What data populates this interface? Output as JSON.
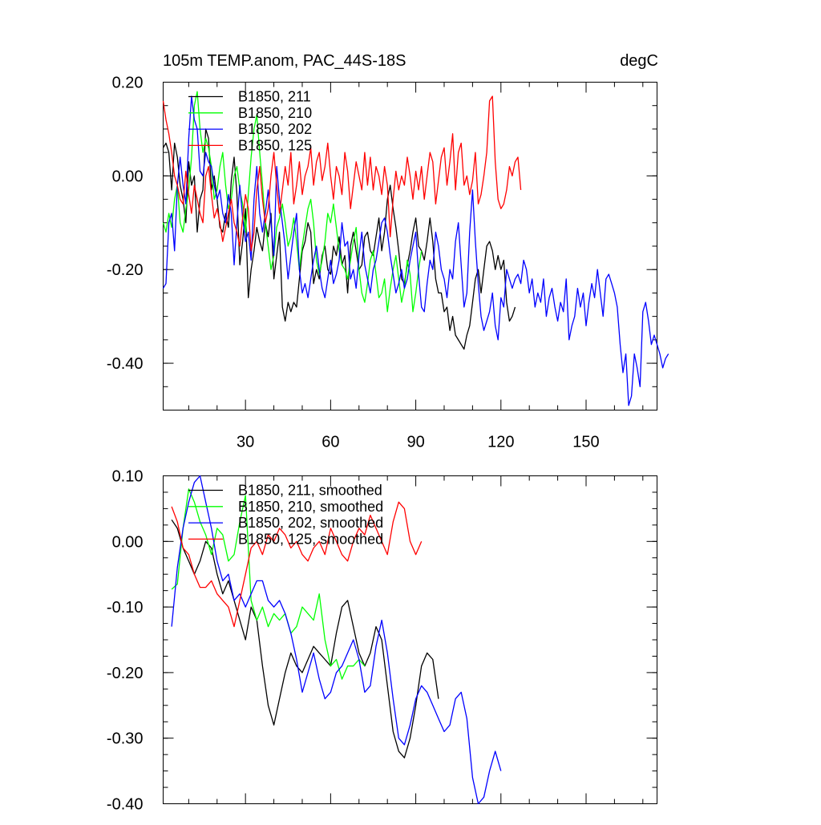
{
  "chart_data": [
    {
      "type": "line",
      "title": "105m TEMP.anom, PAC_44S-18S",
      "units": "degC",
      "xlabel": "",
      "ylabel": "",
      "xlim": [
        1,
        175
      ],
      "ylim": [
        -0.5,
        0.2
      ],
      "xticks": [
        30,
        60,
        90,
        120,
        150
      ],
      "xtick_labels": [
        "30",
        "60",
        "90",
        "120",
        "150"
      ],
      "yticks": [
        0.2,
        0.0,
        -0.2,
        -0.4
      ],
      "ytick_labels": [
        "0.20",
        "0.00",
        "-0.20",
        "-0.40"
      ],
      "legend_position": "top-left",
      "series": [
        {
          "name": "B1850, 211",
          "color": "#000000",
          "x_start": 1,
          "x_step": 1,
          "values": [
            0.06,
            0.07,
            0.05,
            -0.03,
            0.07,
            0.04,
            -0.02,
            -0.05,
            -0.1,
            0.03,
            -0.02,
            0.0,
            -0.12,
            -0.05,
            -0.03,
            0.1,
            0.08,
            -0.03,
            0.0,
            -0.05,
            -0.11,
            -0.12,
            -0.08,
            -0.11,
            -0.01,
            0.04,
            -0.04,
            -0.19,
            -0.14,
            -0.07,
            -0.26,
            -0.2,
            -0.16,
            -0.11,
            -0.14,
            -0.16,
            -0.1,
            -0.13,
            -0.08,
            -0.22,
            -0.17,
            -0.12,
            -0.28,
            -0.31,
            -0.27,
            -0.29,
            -0.27,
            -0.28,
            -0.22,
            -0.16,
            -0.14,
            -0.1,
            -0.12,
            -0.23,
            -0.2,
            -0.22,
            -0.17,
            -0.15,
            -0.2,
            -0.21,
            -0.15,
            -0.17,
            -0.13,
            -0.19,
            -0.17,
            -0.25,
            -0.15,
            -0.12,
            -0.16,
            -0.2,
            -0.19,
            -0.13,
            -0.12,
            -0.16,
            -0.17,
            -0.13,
            -0.09,
            -0.16,
            -0.12,
            -0.05,
            -0.02,
            -0.07,
            -0.11,
            -0.16,
            -0.22,
            -0.23,
            -0.19,
            -0.16,
            -0.12,
            -0.09,
            -0.15,
            -0.16,
            -0.18,
            -0.14,
            -0.09,
            -0.14,
            -0.22,
            -0.25,
            -0.25,
            -0.29,
            -0.28,
            -0.33,
            -0.3,
            -0.34,
            -0.35,
            -0.36,
            -0.37,
            -0.34,
            -0.32,
            -0.27,
            -0.22,
            -0.2,
            -0.25,
            -0.2,
            -0.15,
            -0.14,
            -0.16,
            -0.2,
            -0.17,
            -0.2,
            -0.18,
            -0.27,
            -0.31,
            -0.3,
            -0.28
          ]
        },
        {
          "name": "B1850, 210",
          "color": "#00ff00",
          "x_start": 1,
          "x_step": 1,
          "values": [
            -0.1,
            -0.12,
            -0.08,
            -0.11,
            -0.05,
            -0.02,
            -0.1,
            -0.12,
            -0.07,
            -0.03,
            0.04,
            0.15,
            0.18,
            0.1,
            0.05,
            0.08,
            0.06,
            0.02,
            -0.05,
            -0.03,
            0.02,
            0.05,
            -0.02,
            -0.07,
            -0.05,
            0.0,
            0.02,
            -0.03,
            -0.06,
            -0.12,
            -0.04,
            0.04,
            0.1,
            0.13,
            0.05,
            -0.02,
            -0.1,
            -0.15,
            -0.2,
            -0.17,
            -0.11,
            -0.09,
            -0.06,
            -0.1,
            -0.15,
            -0.13,
            -0.09,
            -0.14,
            -0.2,
            -0.15,
            -0.11,
            -0.07,
            -0.05,
            -0.1,
            -0.18,
            -0.21,
            -0.18,
            -0.14,
            -0.08,
            -0.1,
            -0.06,
            -0.11,
            -0.16,
            -0.19,
            -0.2,
            -0.22,
            -0.18,
            -0.14,
            -0.11,
            -0.2,
            -0.25,
            -0.27,
            -0.23,
            -0.18,
            -0.16,
            -0.21,
            -0.26,
            -0.25,
            -0.22,
            -0.29,
            -0.24,
            -0.2,
            -0.17,
            -0.22,
            -0.27,
            -0.24,
            -0.18,
            -0.21,
            -0.29,
            -0.25,
            -0.2,
            -0.16
          ]
        },
        {
          "name": "B1850, 202",
          "color": "#0000ff",
          "x_start": 1,
          "x_step": 1,
          "values": [
            -0.24,
            -0.23,
            -0.1,
            -0.08,
            -0.16,
            -0.02,
            0.04,
            -0.02,
            -0.06,
            0.08,
            0.17,
            0.12,
            0.1,
            0.01,
            0.0,
            0.05,
            0.03,
            0.02,
            -0.02,
            -0.05,
            -0.03,
            -0.08,
            -0.1,
            -0.04,
            -0.08,
            -0.19,
            -0.1,
            -0.02,
            -0.09,
            -0.14,
            -0.12,
            -0.18,
            -0.05,
            0.02,
            -0.08,
            -0.12,
            -0.08,
            -0.03,
            -0.1,
            -0.17,
            0.02,
            -0.05,
            -0.1,
            -0.15,
            -0.22,
            -0.17,
            -0.12,
            -0.08,
            -0.2,
            -0.25,
            -0.23,
            -0.26,
            -0.22,
            -0.18,
            -0.15,
            -0.2,
            -0.24,
            -0.26,
            -0.22,
            -0.18,
            -0.23,
            -0.21,
            -0.18,
            -0.1,
            -0.15,
            -0.14,
            -0.22,
            -0.2,
            -0.24,
            -0.17,
            -0.12,
            -0.19,
            -0.22,
            -0.25,
            -0.2,
            -0.18,
            -0.14,
            -0.1,
            -0.09,
            -0.12,
            -0.17,
            -0.21,
            -0.25,
            -0.23,
            -0.2,
            -0.24,
            -0.22,
            -0.18,
            -0.15,
            -0.12,
            -0.21,
            -0.28,
            -0.29,
            -0.23,
            -0.18,
            -0.2,
            -0.12,
            -0.15,
            -0.2,
            -0.22,
            -0.26,
            -0.2,
            -0.22,
            -0.14,
            -0.1,
            -0.19,
            -0.28,
            -0.25,
            -0.12,
            -0.03,
            -0.14,
            -0.23,
            -0.3,
            -0.33,
            -0.31,
            -0.29,
            -0.25,
            -0.32,
            -0.35,
            -0.26,
            -0.28,
            -0.2,
            -0.22,
            -0.24,
            -0.22,
            -0.21,
            -0.23,
            -0.18,
            -0.2,
            -0.25,
            -0.22,
            -0.28,
            -0.25,
            -0.27,
            -0.22,
            -0.3,
            -0.26,
            -0.24,
            -0.28,
            -0.31,
            -0.27,
            -0.29,
            -0.22,
            -0.35,
            -0.32,
            -0.3,
            -0.24,
            -0.28,
            -0.25,
            -0.32,
            -0.27,
            -0.23,
            -0.26,
            -0.2,
            -0.25,
            -0.3,
            -0.22,
            -0.21,
            -0.23,
            -0.25,
            -0.28,
            -0.36,
            -0.42,
            -0.38,
            -0.49,
            -0.47,
            -0.38,
            -0.41,
            -0.45,
            -0.29,
            -0.27,
            -0.31,
            -0.36,
            -0.34,
            -0.36,
            -0.38,
            -0.41,
            -0.39,
            -0.38
          ]
        },
        {
          "name": "B1850, 125",
          "color": "#ff0000",
          "x_start": 1,
          "x_step": 1,
          "values": [
            0.16,
            0.12,
            0.09,
            0.05,
            0.0,
            -0.02,
            -0.05,
            -0.06,
            0.01,
            -0.04,
            -0.08,
            -0.02,
            -0.05,
            -0.08,
            -0.1,
            0.0,
            0.02,
            -0.04,
            -0.09,
            -0.07,
            -0.1,
            -0.14,
            -0.11,
            -0.08,
            -0.05,
            -0.1,
            -0.12,
            -0.15,
            -0.09,
            -0.04,
            -0.07,
            -0.16,
            -0.12,
            -0.03,
            0.02,
            -0.05,
            -0.1,
            -0.07,
            0.0,
            0.05,
            -0.02,
            -0.08,
            -0.03,
            0.02,
            -0.02,
            0.05,
            -0.06,
            -0.02,
            0.03,
            -0.04,
            0.0,
            0.02,
            0.06,
            -0.02,
            0.03,
            0.05,
            -0.01,
            0.02,
            0.07,
            0.0,
            -0.05,
            0.02,
            0.0,
            -0.04,
            0.05,
            0.01,
            -0.07,
            -0.02,
            0.03,
            0.0,
            -0.03,
            0.05,
            -0.02,
            0.04,
            -0.03,
            0.02,
            0.0,
            -0.04,
            0.02,
            -0.02,
            -0.13,
            -0.05,
            0.01,
            -0.03,
            0.0,
            -0.02,
            0.04,
            0.0,
            -0.05,
            0.01,
            -0.03,
            0.02,
            -0.05,
            0.0,
            0.05,
            0.03,
            -0.06,
            -0.01,
            0.04,
            0.06,
            -0.02,
            0.03,
            0.09,
            -0.03,
            0.05,
            0.07,
            -0.02,
            0.0,
            -0.04,
            -0.01,
            0.05,
            -0.06,
            -0.04,
            0.0,
            0.05,
            0.16,
            0.17,
            0.03,
            -0.05,
            -0.07,
            -0.06,
            -0.03,
            0.02,
            0.0,
            0.03,
            0.04,
            -0.03
          ]
        }
      ]
    },
    {
      "type": "line",
      "title": "",
      "xlabel": "",
      "ylabel": "",
      "xlim": [
        1,
        175
      ],
      "ylim": [
        -0.4,
        0.1
      ],
      "xticks": [
        30,
        60,
        90,
        120,
        150
      ],
      "yticks": [
        0.1,
        0.0,
        -0.1,
        -0.2,
        -0.3,
        -0.4
      ],
      "ytick_labels": [
        "0.10",
        "0.00",
        "-0.10",
        "-0.20",
        "-0.30",
        "-0.40"
      ],
      "legend_position": "top-left",
      "series": [
        {
          "name": "B1850, 211, smoothed",
          "color": "#000000",
          "x_start": 4,
          "x_step": 2,
          "values": [
            0.033,
            0.02,
            -0.01,
            -0.03,
            -0.05,
            -0.03,
            0.0,
            -0.01,
            -0.05,
            -0.08,
            -0.06,
            -0.09,
            -0.12,
            -0.15,
            -0.1,
            -0.12,
            -0.19,
            -0.25,
            -0.28,
            -0.24,
            -0.2,
            -0.17,
            -0.19,
            -0.2,
            -0.18,
            -0.16,
            -0.17,
            -0.18,
            -0.19,
            -0.14,
            -0.1,
            -0.09,
            -0.13,
            -0.17,
            -0.19,
            -0.17,
            -0.13,
            -0.15,
            -0.22,
            -0.29,
            -0.32,
            -0.33,
            -0.3,
            -0.25,
            -0.19,
            -0.17,
            -0.18,
            -0.24
          ]
        },
        {
          "name": "B1850, 210, smoothed",
          "color": "#00ff00",
          "x_start": 4,
          "x_step": 2,
          "values": [
            -0.073,
            -0.065,
            0.02,
            0.08,
            0.06,
            0.03,
            0.01,
            -0.02,
            0.02,
            0.01,
            -0.03,
            -0.02,
            0.03,
            0.07,
            -0.09,
            -0.12,
            -0.1,
            -0.13,
            -0.11,
            -0.12,
            -0.11,
            -0.14,
            -0.13,
            -0.1,
            -0.11,
            -0.12,
            -0.08,
            -0.15,
            -0.19,
            -0.18,
            -0.21,
            -0.19,
            -0.19,
            -0.18,
            -0.19
          ]
        },
        {
          "name": "B1850, 202, smoothed",
          "color": "#0000ff",
          "x_start": 4,
          "x_step": 2,
          "values": [
            -0.13,
            -0.04,
            0.02,
            0.06,
            0.09,
            0.1,
            0.06,
            0.02,
            -0.03,
            -0.06,
            -0.05,
            -0.09,
            -0.08,
            -0.1,
            -0.08,
            -0.06,
            -0.06,
            -0.09,
            -0.1,
            -0.09,
            -0.11,
            -0.14,
            -0.18,
            -0.23,
            -0.2,
            -0.17,
            -0.21,
            -0.24,
            -0.23,
            -0.2,
            -0.19,
            -0.17,
            -0.15,
            -0.18,
            -0.23,
            -0.22,
            -0.16,
            -0.12,
            -0.17,
            -0.24,
            -0.3,
            -0.31,
            -0.28,
            -0.24,
            -0.22,
            -0.23,
            -0.25,
            -0.27,
            -0.29,
            -0.28,
            -0.24,
            -0.23,
            -0.27,
            -0.36,
            -0.4,
            -0.39,
            -0.35,
            -0.32,
            -0.35
          ]
        },
        {
          "name": "B1850, 125, smoothed",
          "color": "#ff0000",
          "x_start": 4,
          "x_step": 2,
          "values": [
            0.053,
            0.03,
            -0.01,
            -0.02,
            -0.05,
            -0.07,
            -0.07,
            -0.06,
            -0.08,
            -0.09,
            -0.1,
            -0.13,
            -0.09,
            -0.05,
            -0.01,
            0.0,
            -0.02,
            0.01,
            0.0,
            0.02,
            0.01,
            -0.01,
            0.0,
            -0.02,
            -0.03,
            -0.01,
            0.0,
            -0.02,
            0.02,
            0.0,
            -0.02,
            -0.03,
            0.0,
            0.02,
            0.01,
            0.04,
            0.02,
            0.0,
            -0.02,
            0.03,
            0.06,
            0.05,
            0.0,
            -0.02,
            0.0
          ]
        }
      ]
    }
  ]
}
